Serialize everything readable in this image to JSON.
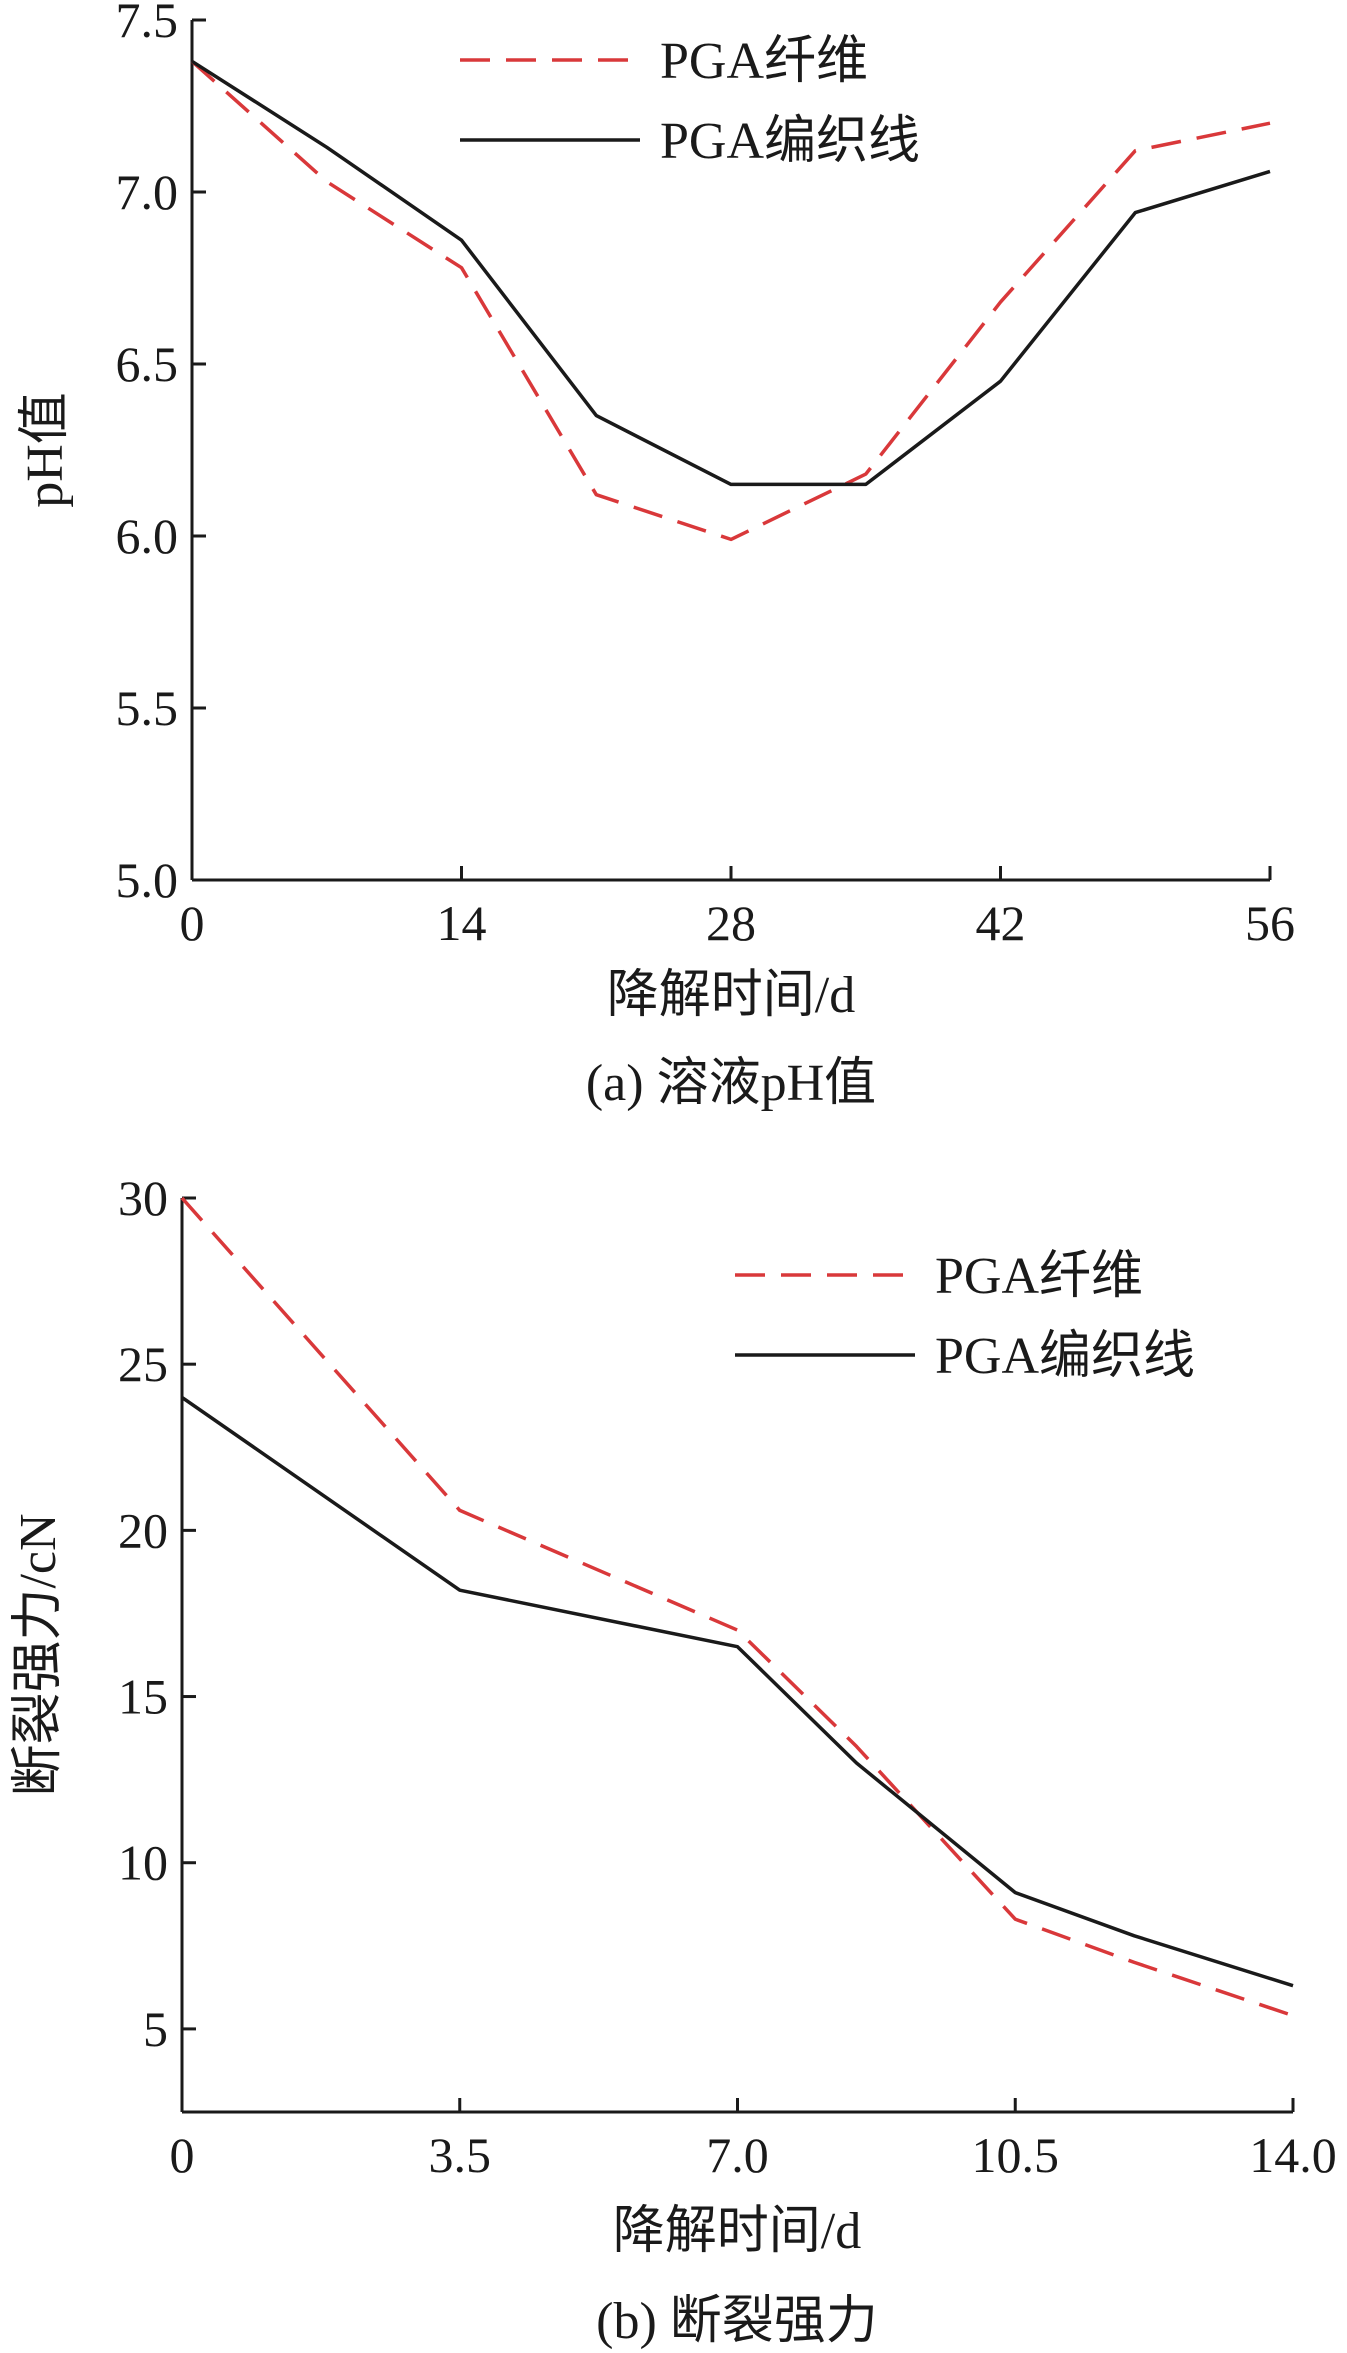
{
  "colors": {
    "fiber": "#d9383a",
    "braid": "#1a1a1a",
    "axis": "#1a1a1a"
  },
  "chart_data": [
    {
      "type": "line",
      "caption": "(a) 溶液pH值",
      "xlabel": "降解时间/d",
      "ylabel": "pH值",
      "xlim": [
        0,
        56
      ],
      "ylim": [
        5.0,
        7.5
      ],
      "xticks": [
        0,
        14,
        28,
        42,
        56
      ],
      "xtick_labels": [
        "0",
        "14",
        "28",
        "42",
        "56"
      ],
      "yticks": [
        5.0,
        5.5,
        6.0,
        6.5,
        7.0,
        7.5
      ],
      "ytick_labels": [
        "5.0",
        "5.5",
        "6.0",
        "6.5",
        "7.0",
        "7.5"
      ],
      "legend_position": "top-right",
      "series": [
        {
          "name": "PGA纤维",
          "style": "dashed",
          "color": "#d9383a",
          "x": [
            0,
            7,
            14,
            21,
            28,
            35,
            42,
            49,
            56
          ],
          "y": [
            7.38,
            7.03,
            6.78,
            6.12,
            5.99,
            6.18,
            6.68,
            7.12,
            7.2
          ]
        },
        {
          "name": "PGA编织线",
          "style": "solid",
          "color": "#1a1a1a",
          "x": [
            0,
            7,
            14,
            21,
            28,
            35,
            42,
            49,
            56
          ],
          "y": [
            7.38,
            7.13,
            6.86,
            6.35,
            6.15,
            6.15,
            6.45,
            6.94,
            7.06
          ]
        }
      ]
    },
    {
      "type": "line",
      "caption": "(b) 断裂强力",
      "xlabel": "降解时间/d",
      "ylabel": "断裂强力/cN",
      "xlim": [
        0,
        14
      ],
      "ylim": [
        2.5,
        30
      ],
      "xticks": [
        0,
        3.5,
        7,
        10.5,
        14
      ],
      "xtick_labels": [
        "0",
        "3.5",
        "7.0",
        "10.5",
        "14.0"
      ],
      "yticks": [
        5,
        10,
        15,
        20,
        25,
        30
      ],
      "ytick_labels": [
        "5",
        "10",
        "15",
        "20",
        "25",
        "30"
      ],
      "legend_position": "top-right",
      "series": [
        {
          "name": "PGA纤维",
          "style": "dashed",
          "color": "#d9383a",
          "x": [
            0,
            3.5,
            7,
            8.5,
            10.5,
            12,
            14
          ],
          "y": [
            30,
            20.6,
            17.0,
            13.5,
            8.3,
            7.0,
            5.4
          ]
        },
        {
          "name": "PGA编织线",
          "style": "solid",
          "color": "#1a1a1a",
          "x": [
            0,
            3.5,
            7,
            8.5,
            10.5,
            12,
            14
          ],
          "y": [
            24,
            18.2,
            16.5,
            13.0,
            9.1,
            7.8,
            6.3
          ]
        }
      ]
    }
  ]
}
